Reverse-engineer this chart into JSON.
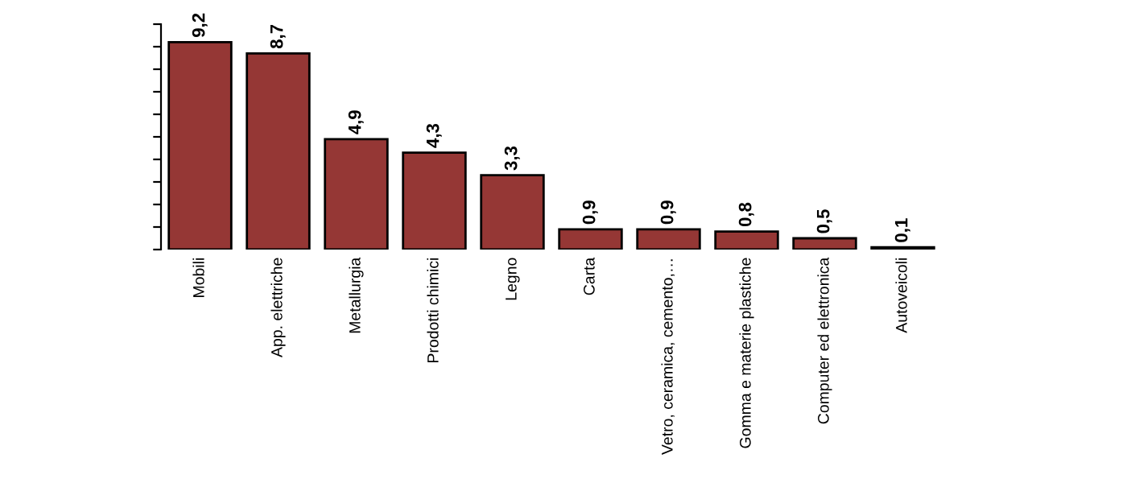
{
  "chart_data": {
    "type": "bar",
    "categories": [
      "Mobili",
      "App. elettriche",
      "Metallurgia",
      "Prodotti chimici",
      "Legno",
      "Carta",
      "Vetro, ceramica, cemento,…",
      "Gomma e materie plastiche",
      "Computer ed elettronica",
      "Autoveicoli"
    ],
    "values": [
      9.2,
      8.7,
      4.9,
      4.3,
      3.3,
      0.9,
      0.9,
      0.8,
      0.5,
      0.1
    ],
    "value_labels": [
      "9,2",
      "8,7",
      "4,9",
      "4,3",
      "3,3",
      "0,9",
      "0,9",
      "0,8",
      "0,5",
      "0,1"
    ],
    "color": "#953735",
    "ylim": [
      0,
      10
    ],
    "yticks": [
      {
        "value": 0,
        "label": null
      },
      {
        "value": 1,
        "label": null
      },
      {
        "value": 2,
        "label": null
      },
      {
        "value": 3,
        "label": null
      },
      {
        "value": 4,
        "label": null
      },
      {
        "value": 5,
        "label": null
      },
      {
        "value": 6,
        "label": null
      },
      {
        "value": 7,
        "label": null
      },
      {
        "value": 8,
        "label": null
      },
      {
        "value": 9,
        "label": null
      },
      {
        "value": 10,
        "label": null
      }
    ],
    "grid": false,
    "legend": false
  }
}
